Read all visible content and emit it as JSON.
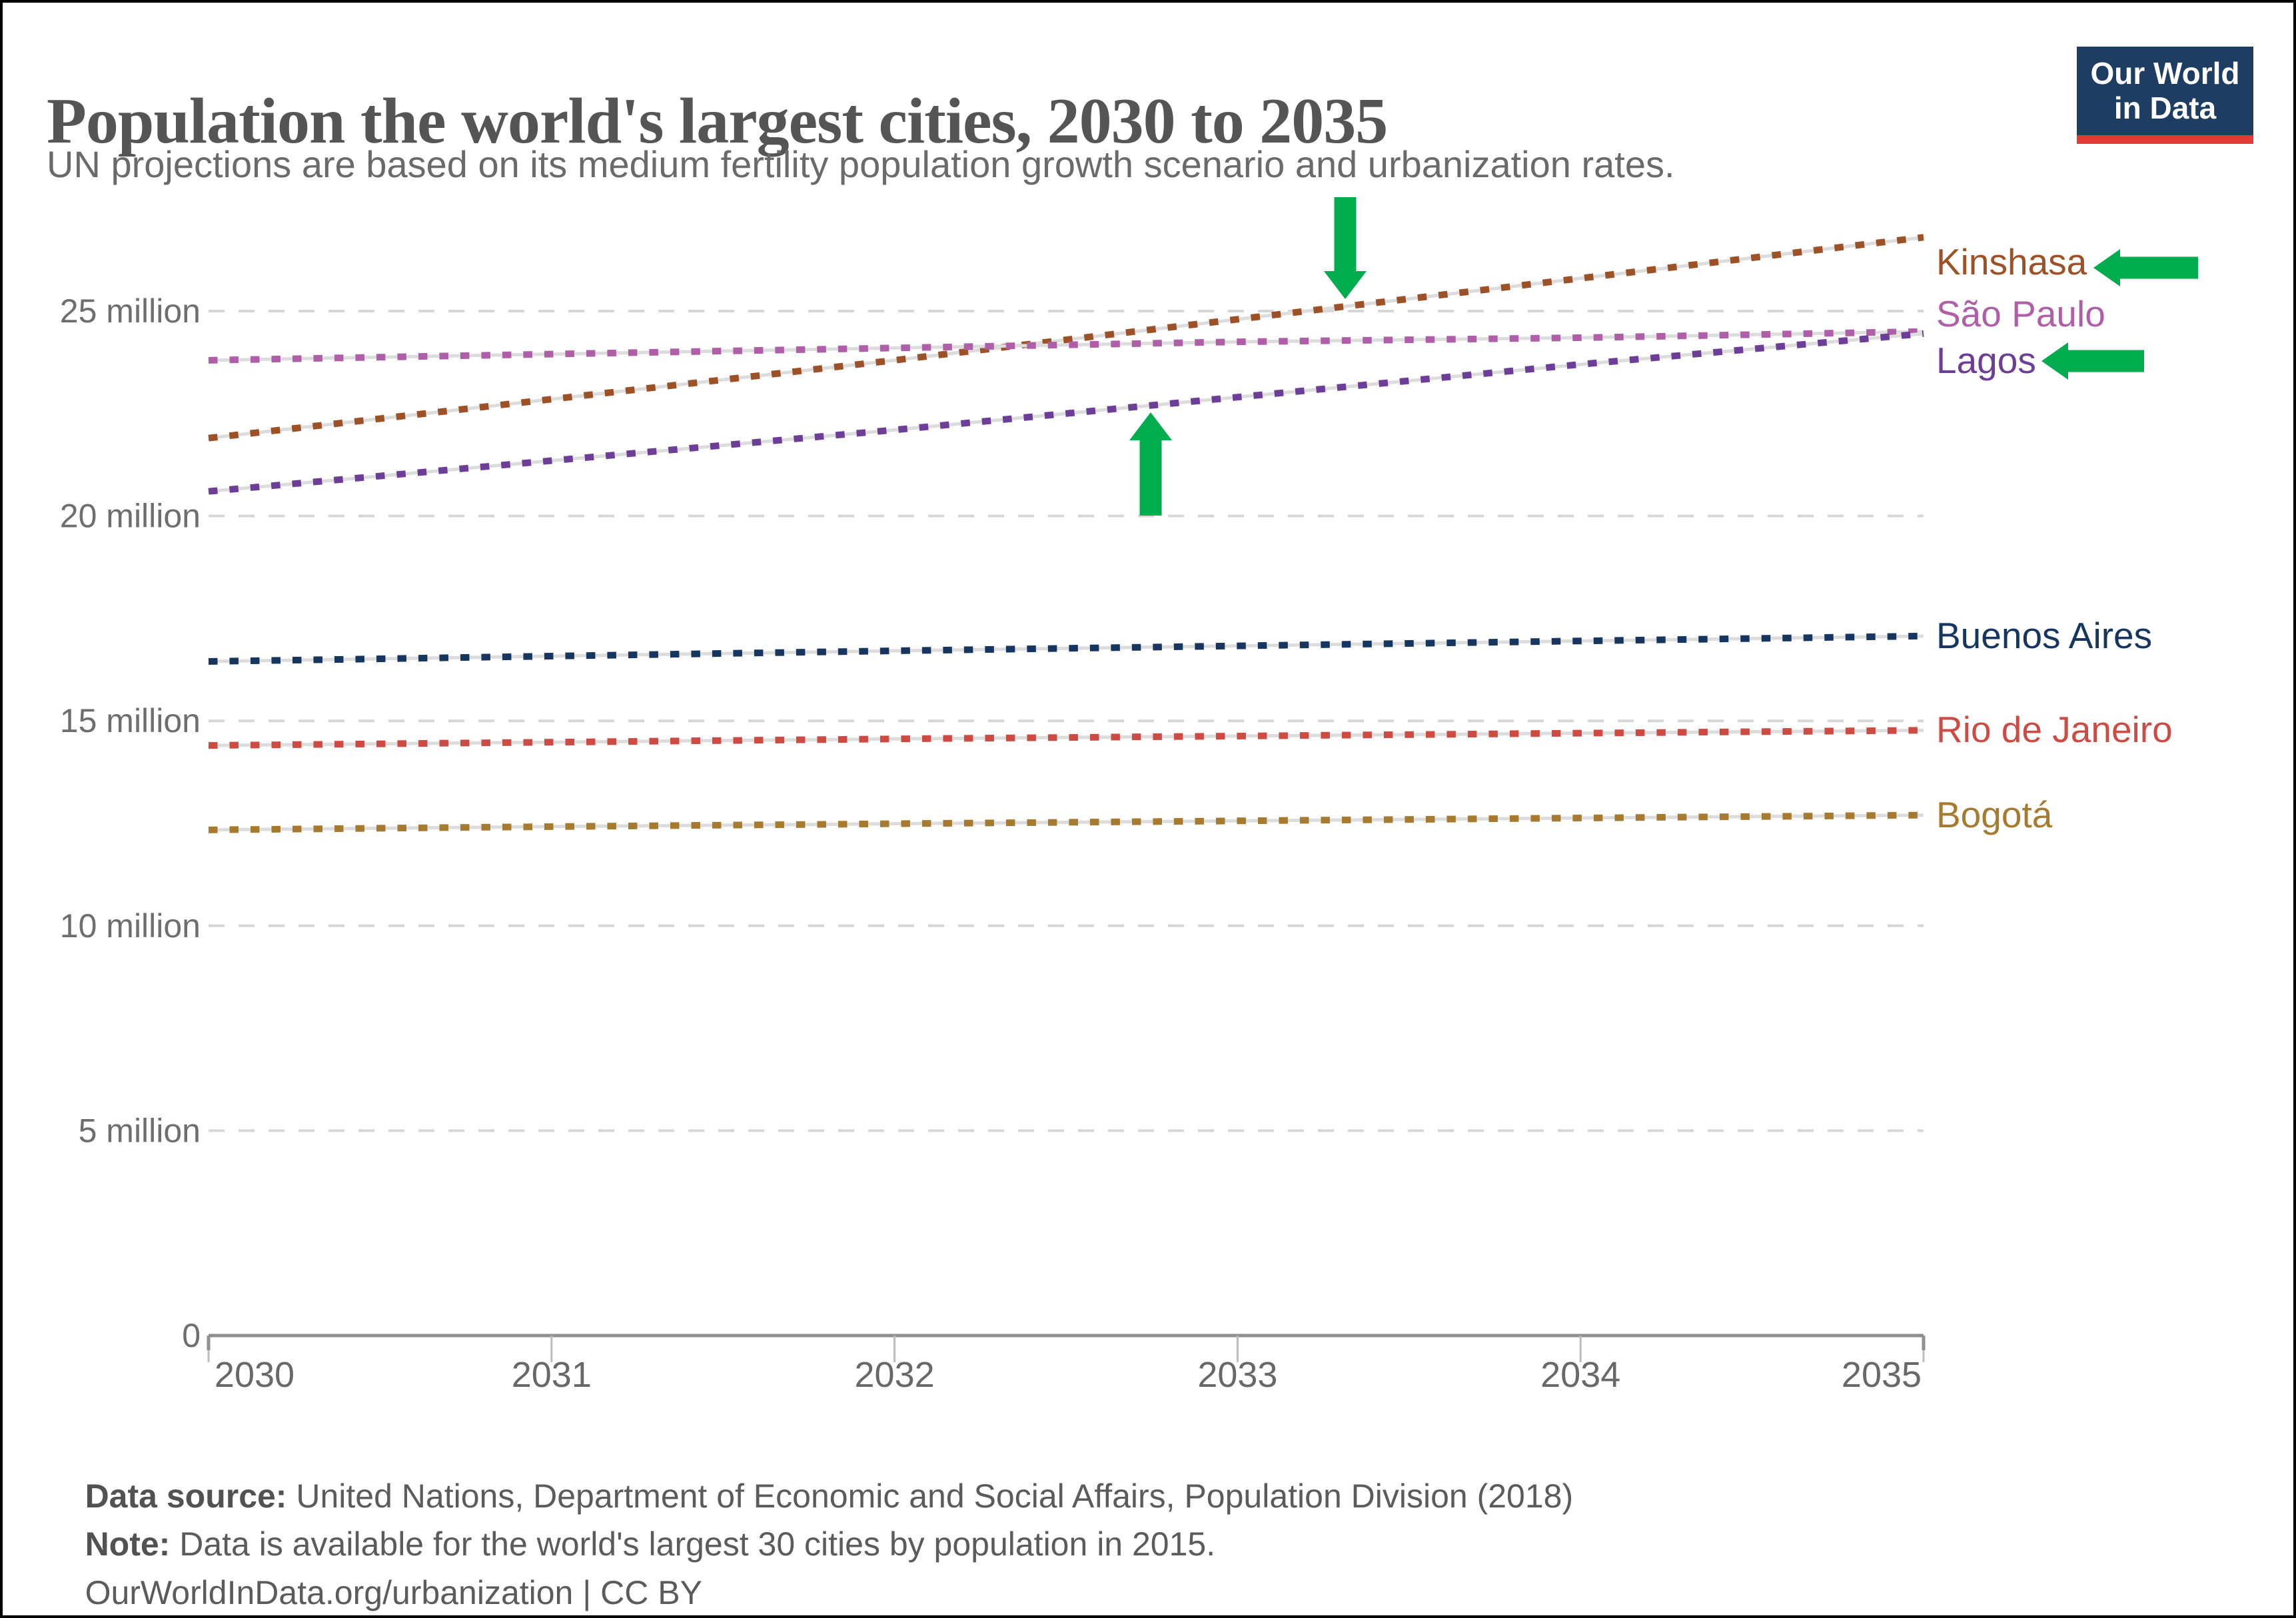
{
  "header": {
    "title": "Population the world's largest cities, 2030 to 2035",
    "subtitle": "UN projections are based on its medium fertility population growth scenario and urbanization rates."
  },
  "logo": {
    "line1": "Our World",
    "line2": "in Data",
    "bg_color": "#1D3D63",
    "bar_color": "#E23B33"
  },
  "chart_data": {
    "type": "line",
    "line_style": "dotted projection dashes over light-gray line",
    "x": [
      2030,
      2031,
      2032,
      2033,
      2034,
      2035
    ],
    "xtick_labels": [
      "2030",
      "2031",
      "2032",
      "2033",
      "2034",
      "2035"
    ],
    "ylim": [
      0,
      27
    ],
    "unit": "million people",
    "grid": "horizontal dashed",
    "legend_position": "right edge line labels",
    "yticks": [
      {
        "value": 25,
        "label": "25 million"
      },
      {
        "value": 20,
        "label": "20 million"
      },
      {
        "value": 15,
        "label": "15 million"
      },
      {
        "value": 10,
        "label": "10 million"
      },
      {
        "value": 5,
        "label": "5 million"
      },
      {
        "value": 0,
        "label": "0"
      }
    ],
    "series": [
      {
        "name": "Kinshasa",
        "color": "#9C5127",
        "values": [
          21.9,
          22.85,
          23.8,
          24.8,
          25.8,
          26.8
        ],
        "label_offset": 38
      },
      {
        "name": "São Paulo",
        "color": "#AE5FA7",
        "values": [
          23.8,
          23.95,
          24.1,
          24.25,
          24.35,
          24.5
        ],
        "label_offset": -26
      },
      {
        "name": "Lagos",
        "color": "#6D3E98",
        "values": [
          20.6,
          21.35,
          22.1,
          22.9,
          23.7,
          24.45
        ],
        "label_offset": 41
      },
      {
        "name": "Buenos Aires",
        "color": "#16365F",
        "values": [
          16.45,
          16.58,
          16.71,
          16.83,
          16.95,
          17.07
        ],
        "label_offset": 0
      },
      {
        "name": "Rio de Janeiro",
        "color": "#CE4B43",
        "values": [
          14.4,
          14.48,
          14.56,
          14.63,
          14.7,
          14.77
        ],
        "label_offset": 0
      },
      {
        "name": "Bogotá",
        "color": "#A77B2F",
        "values": [
          12.34,
          12.42,
          12.49,
          12.56,
          12.63,
          12.7
        ],
        "label_offset": 0
      }
    ],
    "annotations": {
      "color": "#00AC4E",
      "arrows": [
        {
          "direction": "down",
          "x": 2015,
          "y_from": 292,
          "y_tip": 445,
          "meaning": "points at Kinshasa line crossing 25 million"
        },
        {
          "direction": "up",
          "x": 1723,
          "y_from": 770,
          "y_tip": 615,
          "meaning": "points from 20 million gridline up at Lagos line"
        },
        {
          "direction": "left",
          "x_tip": 3138,
          "y": 398,
          "x_tail": 3295,
          "meaning": "points at Kinshasa label"
        },
        {
          "direction": "left",
          "x_tip": 3060,
          "y": 538,
          "x_tail": 3214,
          "meaning": "points at Lagos label"
        }
      ]
    }
  },
  "footer": {
    "source_label": "Data source:",
    "source_text": " United Nations, Department of Economic and Social Affairs, Population Division (2018)",
    "note_label": "Note:",
    "note_text": " Data is available for the world's largest 30 cities by population in 2015.",
    "url": "OurWorldInData.org/urbanization",
    "separator": " | ",
    "license": "CC BY"
  }
}
